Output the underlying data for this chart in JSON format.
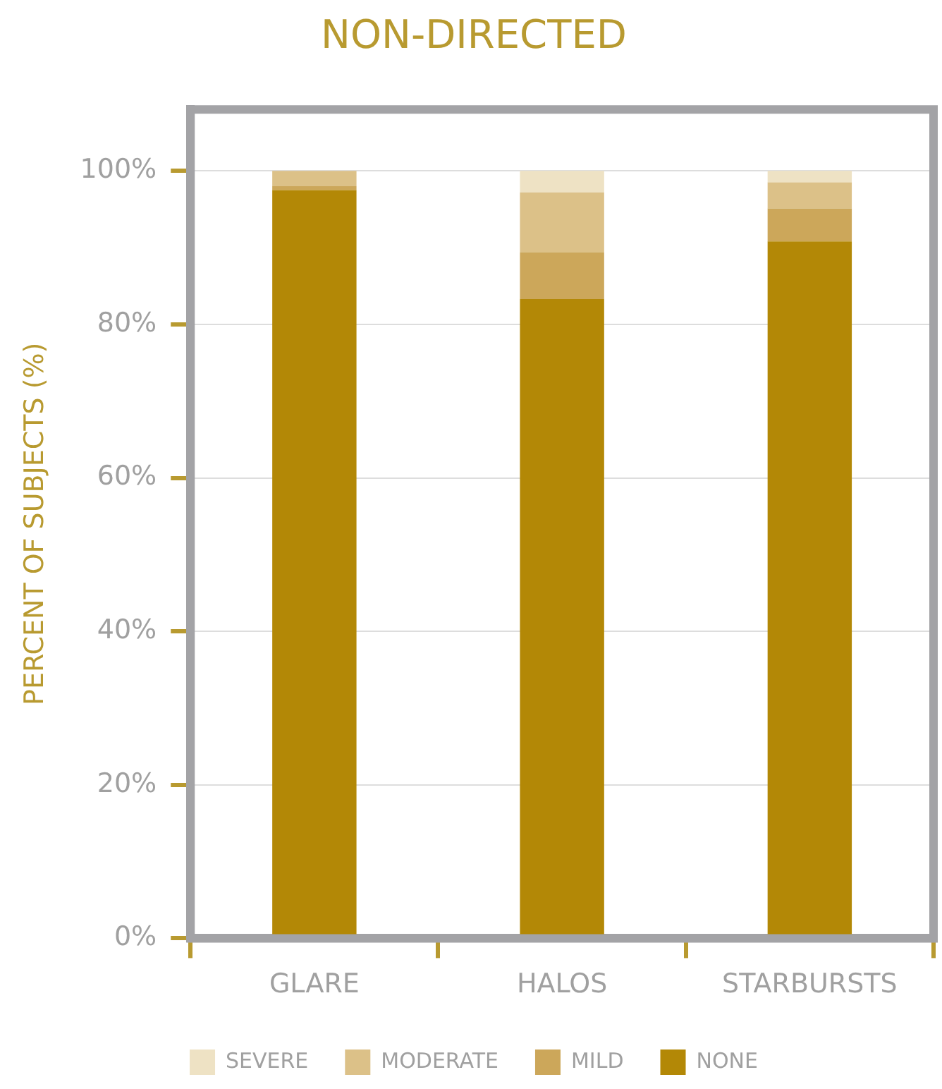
{
  "chart_data": {
    "type": "bar",
    "title": "NON-DIRECTED",
    "ylabel": "PERCENT OF SUBJECTS (%)",
    "categories": [
      "GLARE",
      "HALOS",
      "STARBURSTS"
    ],
    "series": [
      {
        "name": "NONE",
        "color": "#b38806",
        "values": [
          97.5,
          83.3,
          90.8
        ]
      },
      {
        "name": "MILD",
        "color": "#cca75a",
        "values": [
          0.5,
          6.1,
          4.3
        ]
      },
      {
        "name": "MODERATE",
        "color": "#dcc188",
        "values": [
          2,
          7.8,
          3.4
        ]
      },
      {
        "name": "SEVERE",
        "color": "#eee2c4",
        "values": [
          0,
          2.8,
          1.5
        ]
      }
    ],
    "stacked": true,
    "ylim": [
      0,
      108
    ],
    "yticks": [
      {
        "value": 0,
        "label": "0%"
      },
      {
        "value": 20,
        "label": "20%"
      },
      {
        "value": 40,
        "label": "40%"
      },
      {
        "value": 60,
        "label": "60%"
      },
      {
        "value": 80,
        "label": "80%"
      },
      {
        "value": 100,
        "label": "100%"
      }
    ],
    "grid": "y",
    "legend": "bottom"
  }
}
